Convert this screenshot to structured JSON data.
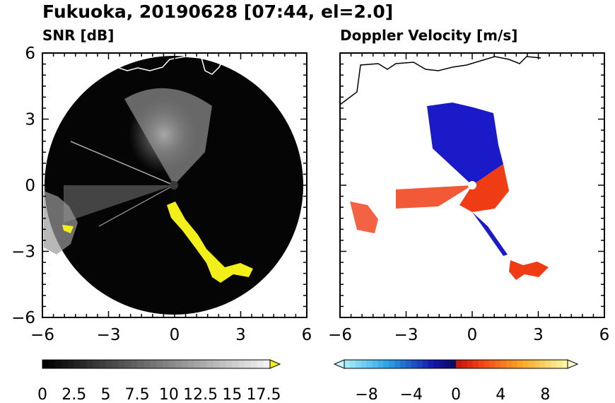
{
  "title": "Fukuoka, 20190628 [07:44, el=2.0]",
  "colors": {
    "background": "#ffffff",
    "radar_disk": "#050505",
    "echo_gray": "#8a8a8a",
    "highlight_yellow": "#f2ef1a",
    "coastline_left": "#ffffff",
    "coastline_right": "#000000",
    "velocity_negative": "#1a1ac8",
    "velocity_positive": "#f03c14"
  },
  "chart_data": [
    {
      "type": "heatmap",
      "title": "SNR [dB]",
      "xlim": [
        -6,
        6
      ],
      "ylim": [
        -6,
        6
      ],
      "x_ticks": [
        -6,
        -3,
        0,
        3,
        6
      ],
      "y_ticks": [
        6,
        3,
        0,
        -3,
        -6
      ],
      "grid": false,
      "colorbar": {
        "labels": [
          "0",
          "2.5",
          "5",
          "7.5",
          "10",
          "12.5",
          "15",
          "17.5"
        ],
        "range": [
          0,
          18
        ],
        "colormap": "grayscale-black-to-white",
        "extend": "max-yellow"
      }
    },
    {
      "type": "heatmap",
      "title": "Doppler Velocity [m/s]",
      "xlim": [
        -6,
        6
      ],
      "ylim": [
        -6,
        6
      ],
      "x_ticks": [
        -6,
        -3,
        0,
        3,
        6
      ],
      "y_ticks": [
        6,
        3,
        0,
        -3,
        -6
      ],
      "grid": false,
      "colorbar": {
        "labels": [
          "−8",
          "−4",
          "0",
          "4",
          "8"
        ],
        "range": [
          -10,
          10
        ],
        "colormap": "cyan-blue-red-yellow",
        "extend": "both"
      }
    }
  ]
}
